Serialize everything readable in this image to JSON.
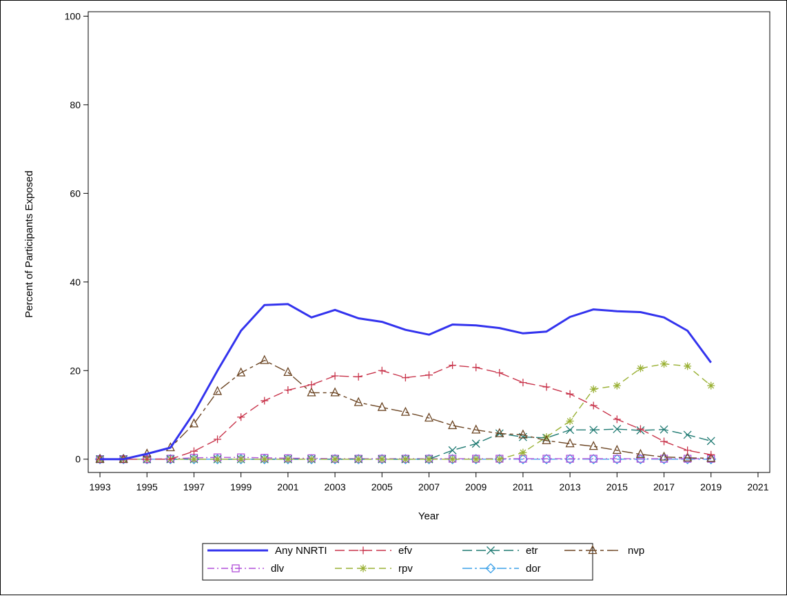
{
  "chart_data": {
    "type": "line",
    "xlabel": "Year",
    "ylabel": "Percent of Participants Exposed",
    "xlim": [
      1993,
      2021
    ],
    "ylim": [
      0,
      100
    ],
    "x_ticks": [
      1993,
      1995,
      1997,
      1999,
      2001,
      2003,
      2005,
      2007,
      2009,
      2011,
      2013,
      2015,
      2017,
      2019,
      2021
    ],
    "y_ticks": [
      0,
      20,
      40,
      60,
      80,
      100
    ],
    "grid": false,
    "legend_position": "bottom",
    "x": [
      1993,
      1994,
      1995,
      1996,
      1997,
      1998,
      1999,
      2000,
      2001,
      2002,
      2003,
      2004,
      2005,
      2006,
      2007,
      2008,
      2009,
      2010,
      2011,
      2012,
      2013,
      2014,
      2015,
      2016,
      2017,
      2018,
      2019
    ],
    "series": [
      {
        "name": "Any NNRTI",
        "color": "#3333ee",
        "marker": "none",
        "dash": "solid",
        "values": [
          0,
          0,
          1.2,
          2.6,
          10.5,
          20.0,
          29.0,
          34.8,
          35.0,
          32.0,
          33.7,
          31.8,
          31.0,
          29.2,
          28.1,
          30.4,
          30.2,
          29.6,
          28.4,
          28.8,
          32.1,
          33.8,
          33.4,
          33.2,
          32.0,
          29.0,
          21.8
        ]
      },
      {
        "name": "efv",
        "color": "#c8334a",
        "marker": "plus",
        "dash": "long",
        "values": [
          0,
          0,
          0,
          0,
          1.8,
          4.5,
          9.5,
          13.2,
          15.6,
          16.8,
          18.8,
          18.6,
          20.0,
          18.4,
          19.0,
          21.2,
          20.7,
          19.5,
          17.3,
          16.3,
          14.7,
          12.1,
          9.0,
          6.8,
          4.0,
          2.0,
          1.0
        ]
      },
      {
        "name": "etr",
        "color": "#1f7a72",
        "marker": "x",
        "dash": "long",
        "values": [
          0,
          0,
          0,
          0,
          0,
          0,
          0,
          0,
          0,
          0,
          0,
          0,
          0,
          0,
          0,
          2.0,
          3.5,
          5.8,
          5.0,
          4.8,
          6.6,
          6.6,
          6.8,
          6.5,
          6.7,
          5.5,
          4.1
        ]
      },
      {
        "name": "nvp",
        "color": "#6b4422",
        "marker": "triangle",
        "dash": "longshort",
        "values": [
          0,
          0,
          1.2,
          2.6,
          8.0,
          15.3,
          19.5,
          22.3,
          19.6,
          15.0,
          15.0,
          12.8,
          11.7,
          10.6,
          9.3,
          7.6,
          6.6,
          5.8,
          5.5,
          4.2,
          3.5,
          2.9,
          2.0,
          1.1,
          0.5,
          0.3,
          0.2
        ]
      },
      {
        "name": "dlv",
        "color": "#b04fd8",
        "marker": "square",
        "dash": "dashdot",
        "values": [
          0,
          0,
          0,
          0.1,
          0.3,
          0.4,
          0.4,
          0.3,
          0.2,
          0.2,
          0.1,
          0.1,
          0.1,
          0.1,
          0.1,
          0.1,
          0.1,
          0.1,
          0.1,
          0.1,
          0.1,
          0.1,
          0.1,
          0.1,
          0.1,
          0.1,
          0.1
        ]
      },
      {
        "name": "rpv",
        "color": "#99b033",
        "marker": "star",
        "dash": "medium",
        "values": [
          0,
          0,
          0,
          0,
          0,
          0,
          0,
          0,
          0,
          0,
          0,
          0,
          0,
          0,
          0,
          0,
          0,
          0,
          1.5,
          5.0,
          8.6,
          15.8,
          16.6,
          20.5,
          21.5,
          21.0,
          16.6
        ]
      },
      {
        "name": "dor",
        "color": "#3aa0e8",
        "marker": "diamond",
        "dash": "longshortdot",
        "values": [
          0,
          0,
          0,
          0,
          0,
          0,
          0,
          0,
          0,
          0,
          0,
          0,
          0,
          0,
          0,
          0,
          0,
          0,
          0,
          0,
          0,
          0,
          0,
          0,
          0,
          0,
          0
        ]
      }
    ]
  }
}
